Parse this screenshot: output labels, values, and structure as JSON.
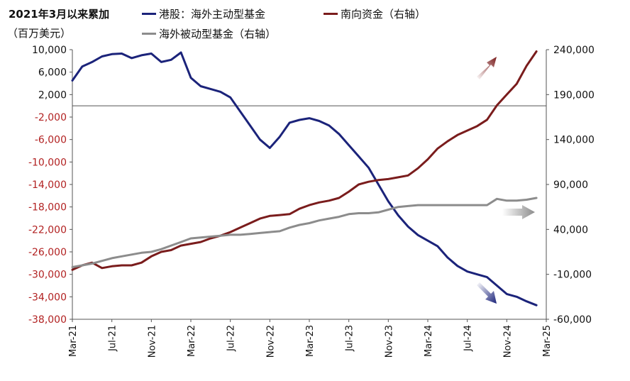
{
  "header": {
    "title": "2021年3月以来累加",
    "unit": "（百万美元）"
  },
  "colors": {
    "series1": "#1b237a",
    "series2": "#7a1c1c",
    "series3": "#8c8c8c",
    "negative_tick": "#b22222",
    "positive_tick": "#111111"
  },
  "chart_data": {
    "type": "line",
    "x_ticks": [
      "Mar-21",
      "Jul-21",
      "Nov-21",
      "Mar-22",
      "Jul-22",
      "Nov-22",
      "Mar-23",
      "Jul-23",
      "Nov-23",
      "Mar-24",
      "Jul-24",
      "Nov-24",
      "Mar-25"
    ],
    "y_left": {
      "ylim": [
        -38000,
        10000
      ],
      "ticks": [
        10000,
        6000,
        2000,
        -2000,
        -6000,
        -10000,
        -14000,
        -18000,
        -22000,
        -26000,
        -30000,
        -34000,
        -38000
      ],
      "tick_labels": [
        "10,000",
        "6,000",
        "2,000",
        "-2,000",
        "-6,000",
        "-10,000",
        "-14,000",
        "-18,000",
        "-22,000",
        "-26,000",
        "-30,000",
        "-34,000",
        "-38,000"
      ]
    },
    "y_right": {
      "ylim": [
        -60000,
        240000
      ],
      "ticks": [
        240000,
        190000,
        140000,
        90000,
        40000,
        -10000,
        -60000
      ],
      "tick_labels": [
        "240,000",
        "190,000",
        "140,000",
        "90,000",
        "40,000",
        "-10,000",
        "-60,000"
      ]
    },
    "series": [
      {
        "name": "港股：海外主动型基金",
        "axis": "left",
        "x": [
          "2021-03",
          "2021-04",
          "2021-05",
          "2021-06",
          "2021-07",
          "2021-08",
          "2021-09",
          "2021-10",
          "2021-11",
          "2021-12",
          "2022-01",
          "2022-02",
          "2022-03",
          "2022-04",
          "2022-05",
          "2022-06",
          "2022-07",
          "2022-08",
          "2022-09",
          "2022-10",
          "2022-11",
          "2022-12",
          "2023-01",
          "2023-02",
          "2023-03",
          "2023-04",
          "2023-05",
          "2023-06",
          "2023-07",
          "2023-08",
          "2023-09",
          "2023-10",
          "2023-11",
          "2023-12",
          "2024-01",
          "2024-02",
          "2024-03",
          "2024-04",
          "2024-05",
          "2024-06",
          "2024-07",
          "2024-08",
          "2024-09",
          "2024-10",
          "2024-11",
          "2024-12",
          "2025-01",
          "2025-02"
        ],
        "values": [
          4500,
          7000,
          7800,
          8800,
          9200,
          9300,
          8500,
          9000,
          9300,
          7800,
          8200,
          9500,
          5000,
          3500,
          3000,
          2500,
          1500,
          -1000,
          -3500,
          -6000,
          -7500,
          -5500,
          -3000,
          -2500,
          -2200,
          -2700,
          -3500,
          -5000,
          -7000,
          -9000,
          -11000,
          -14000,
          -17000,
          -19500,
          -21500,
          -23000,
          -24000,
          -25000,
          -27000,
          -28500,
          -29500,
          -30000,
          -30500,
          -32000,
          -33500,
          -34000,
          -34800,
          -35500
        ]
      },
      {
        "name": "南向资金（右轴）",
        "axis": "right",
        "x": [
          "2021-03",
          "2021-04",
          "2021-05",
          "2021-06",
          "2021-07",
          "2021-08",
          "2021-09",
          "2021-10",
          "2021-11",
          "2021-12",
          "2022-01",
          "2022-02",
          "2022-03",
          "2022-04",
          "2022-05",
          "2022-06",
          "2022-07",
          "2022-08",
          "2022-09",
          "2022-10",
          "2022-11",
          "2022-12",
          "2023-01",
          "2023-02",
          "2023-03",
          "2023-04",
          "2023-05",
          "2023-06",
          "2023-07",
          "2023-08",
          "2023-09",
          "2023-10",
          "2023-11",
          "2023-12",
          "2024-01",
          "2024-02",
          "2024-03",
          "2024-04",
          "2024-05",
          "2024-06",
          "2024-07",
          "2024-08",
          "2024-09",
          "2024-10",
          "2024-11",
          "2024-12",
          "2025-01",
          "2025-02"
        ],
        "values": [
          -5000,
          0,
          3000,
          -3000,
          -1000,
          0,
          0,
          3000,
          10000,
          15000,
          17000,
          22000,
          24000,
          26000,
          30000,
          33000,
          37000,
          42000,
          47000,
          52000,
          55000,
          56000,
          57000,
          63000,
          67000,
          70000,
          72000,
          75000,
          82000,
          90000,
          93000,
          95000,
          96000,
          98000,
          100000,
          108000,
          118000,
          130000,
          138000,
          145000,
          150000,
          155000,
          162000,
          178000,
          190000,
          202000,
          222000,
          238000
        ]
      },
      {
        "name": "海外被动型基金（右轴）",
        "axis": "right",
        "x": [
          "2021-03",
          "2021-04",
          "2021-05",
          "2021-06",
          "2021-07",
          "2021-08",
          "2021-09",
          "2021-10",
          "2021-11",
          "2021-12",
          "2022-01",
          "2022-02",
          "2022-03",
          "2022-04",
          "2022-05",
          "2022-06",
          "2022-07",
          "2022-08",
          "2022-09",
          "2022-10",
          "2022-11",
          "2022-12",
          "2023-01",
          "2023-02",
          "2023-03",
          "2023-04",
          "2023-05",
          "2023-06",
          "2023-07",
          "2023-08",
          "2023-09",
          "2023-10",
          "2023-11",
          "2023-12",
          "2024-01",
          "2024-02",
          "2024-03",
          "2024-04",
          "2024-05",
          "2024-06",
          "2024-07",
          "2024-08",
          "2024-09",
          "2024-10",
          "2024-11",
          "2024-12",
          "2025-01",
          "2025-02"
        ],
        "values": [
          -2000,
          0,
          2000,
          5000,
          8000,
          10000,
          12000,
          14000,
          15000,
          18000,
          22000,
          26000,
          30000,
          31000,
          32000,
          33000,
          34000,
          34000,
          35000,
          36000,
          37000,
          38000,
          42000,
          45000,
          47000,
          50000,
          52000,
          54000,
          57000,
          58000,
          58000,
          59000,
          62000,
          65000,
          66000,
          67000,
          67000,
          67000,
          67000,
          67000,
          67000,
          67000,
          67000,
          74000,
          72000,
          72000,
          73000,
          75000
        ]
      }
    ],
    "annotations": [
      {
        "type": "arrow",
        "direction": "up-right",
        "color": "#7a1c1c"
      },
      {
        "type": "arrow",
        "direction": "right",
        "color": "#8c8c8c"
      },
      {
        "type": "arrow",
        "direction": "down-right",
        "color": "#1b237a"
      }
    ]
  }
}
